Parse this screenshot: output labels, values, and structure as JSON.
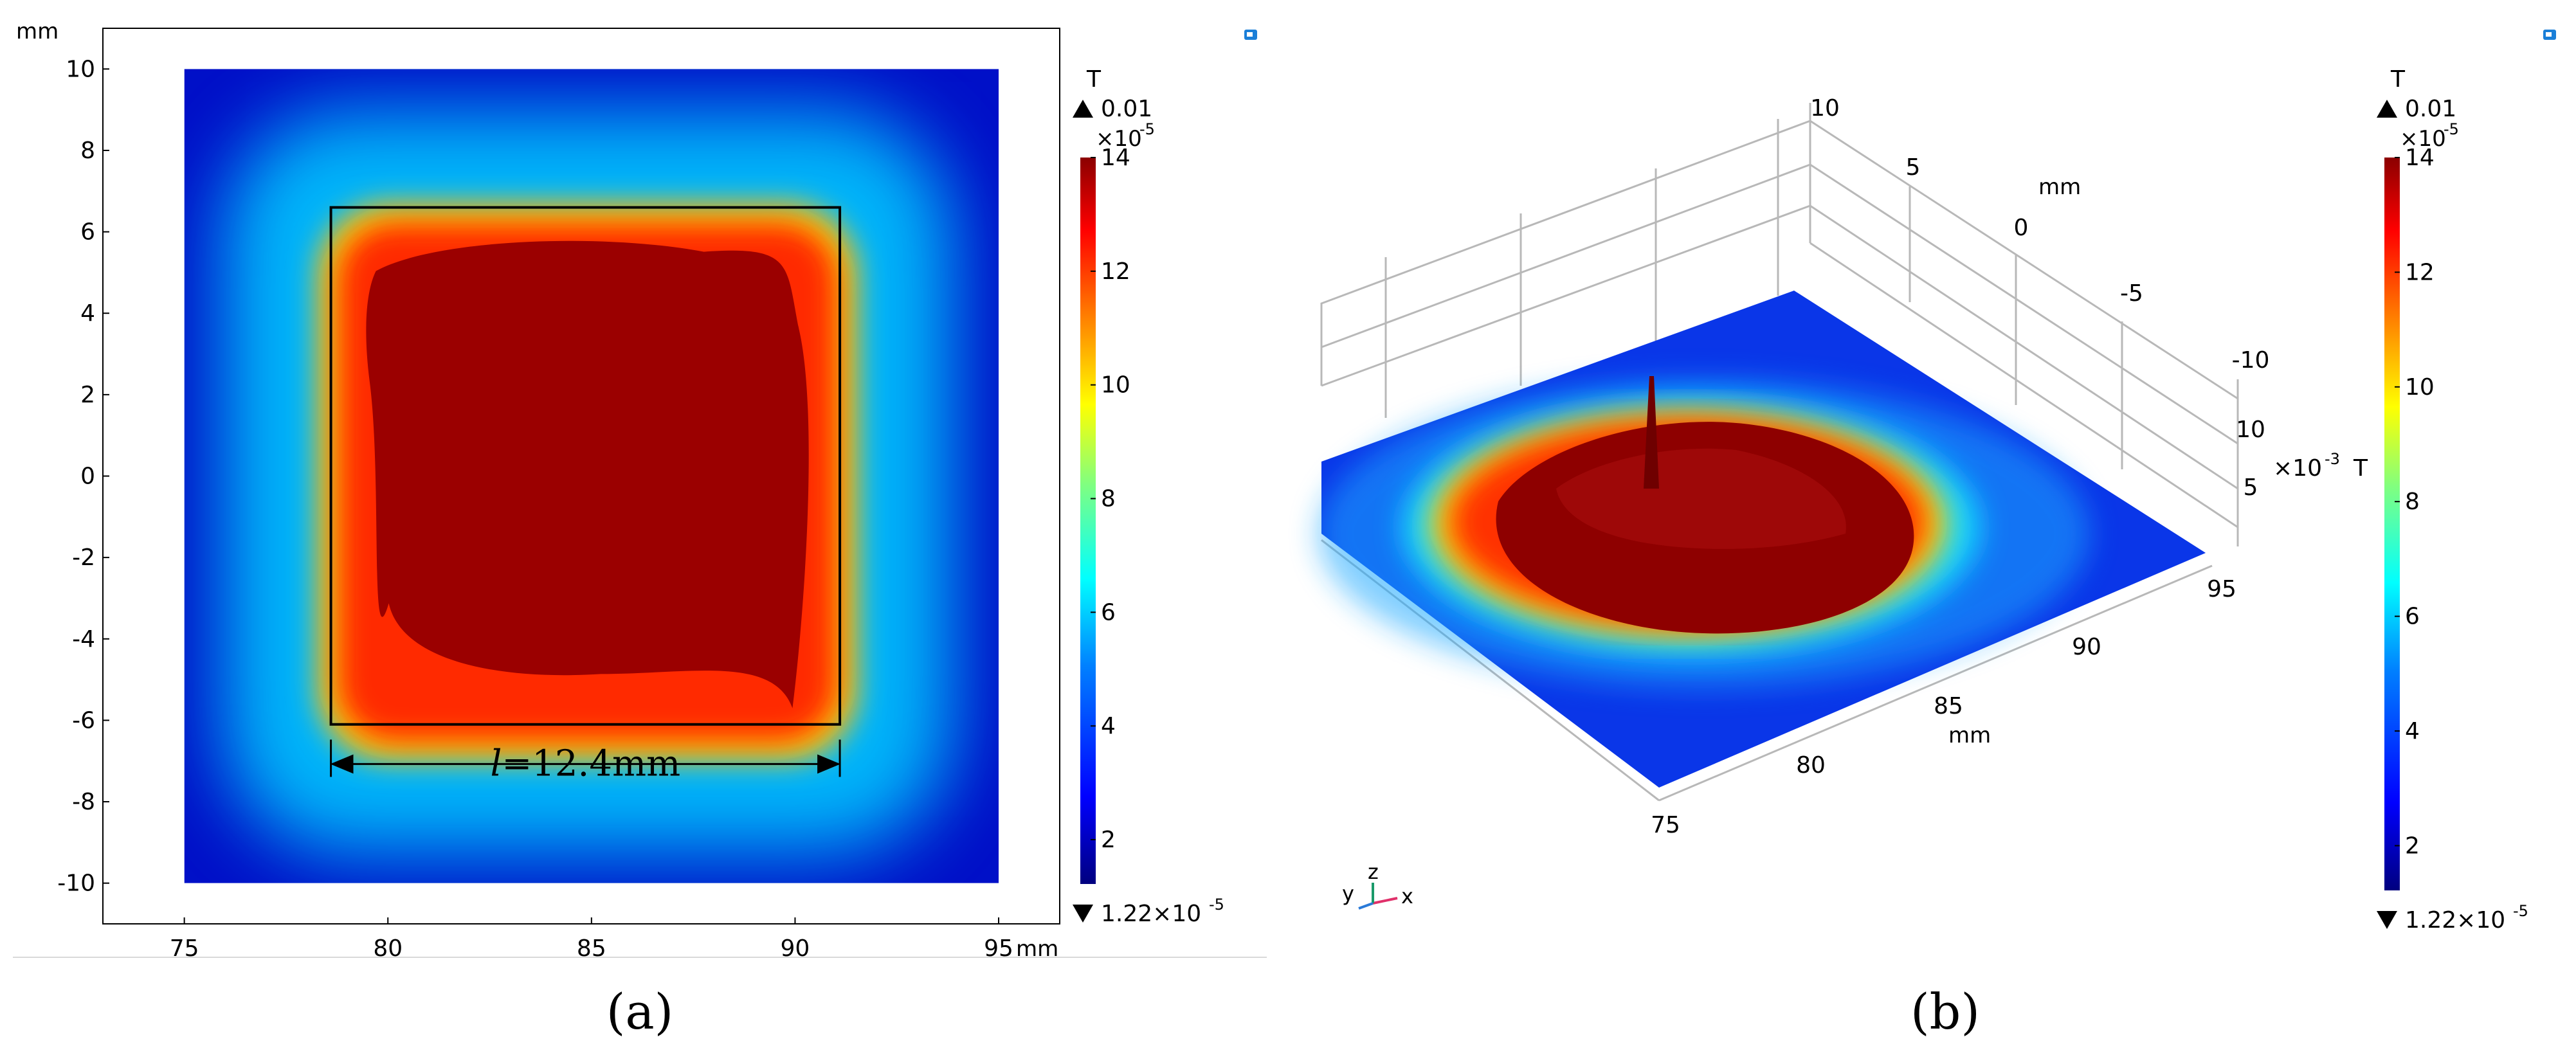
{
  "chart_data": [
    {
      "type": "heatmap",
      "panel": "(a)",
      "xlabel_unit": "mm",
      "ylabel_unit": "mm",
      "xlim": [
        73,
        96.5
      ],
      "ylim": [
        -11,
        11
      ],
      "x_ticks": [
        75,
        80,
        85,
        90,
        95
      ],
      "y_ticks": [
        10,
        8,
        6,
        4,
        2,
        0,
        -2,
        -4,
        -6,
        -8,
        -10
      ],
      "domain_x": [
        75,
        95
      ],
      "domain_y": [
        -10,
        10
      ],
      "saturated_region": {
        "x": [
          78.6,
          91.2
        ],
        "y": [
          -6.6,
          6.3
        ]
      },
      "annotation_box": {
        "x": [
          78.6,
          91.1
        ],
        "y": [
          -6.1,
          6.6
        ]
      },
      "dimension_arrow": {
        "label": "l=12.4mm",
        "label_italic_part": "l",
        "label_rest": "=12.4mm",
        "x": [
          78.6,
          91.1
        ],
        "y": -6.6
      },
      "colorbar": {
        "title": "T",
        "max_label": "▲ 0.01",
        "exponent": "×10",
        "exponent_power": "-5",
        "min_label": "▼ 1.22×10",
        "min_power": "-5",
        "range": [
          1.22,
          14
        ],
        "ticks": [
          14,
          12,
          10,
          8,
          6,
          4,
          2
        ]
      }
    },
    {
      "type": "surface",
      "panel": "(b)",
      "axis_unit": "mm",
      "x_ticks": [
        75,
        80,
        85,
        90,
        95
      ],
      "y_ticks": [
        10,
        5,
        0,
        -5,
        -10
      ],
      "z_ticks": [
        5,
        10
      ],
      "z_exponent": "×10",
      "z_exponent_power": "-3",
      "z_unit": "T",
      "axis_triad": {
        "x": "x",
        "y": "y",
        "z": "z"
      },
      "colorbar": {
        "title": "T",
        "max_label": "▲ 0.01",
        "exponent": "×10",
        "exponent_power": "-5",
        "min_label": "▼ 1.22×10",
        "min_power": "-5",
        "range": [
          1.22,
          14
        ],
        "ticks": [
          14,
          12,
          10,
          8,
          6,
          4,
          2
        ]
      }
    }
  ],
  "captions": {
    "a": "(a)",
    "b": "(b)"
  },
  "colormap": [
    "#00007f",
    "#0000ff",
    "#0080ff",
    "#00ffff",
    "#80ff80",
    "#ffff00",
    "#ff8000",
    "#ff0000",
    "#8b0000"
  ],
  "icons": {
    "toolbar_left": "view-icon",
    "toolbar_right": "view-icon"
  }
}
